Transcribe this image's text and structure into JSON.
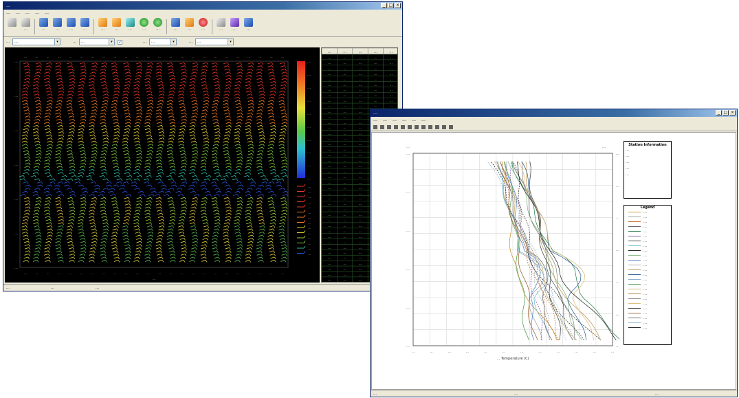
{
  "window1": {
    "title": "…",
    "min": "_",
    "max": "□",
    "close": "×",
    "menus": [
      "…",
      "…",
      "…",
      "…",
      "…"
    ],
    "tools": [
      {
        "label": "",
        "icon": "db-icon",
        "color": "grey"
      },
      {
        "label": "…",
        "icon": "wrench-icon",
        "color": "grey"
      },
      {
        "label": "…",
        "icon": "chart-icon",
        "color": "blue"
      },
      {
        "label": "…",
        "icon": "grid-icon",
        "color": "blue"
      },
      {
        "label": "…",
        "icon": "monitor-icon",
        "color": "blue"
      },
      {
        "label": "…",
        "icon": "pen-icon",
        "color": "blue"
      },
      {
        "label": "…",
        "icon": "tools-icon",
        "color": "orange"
      },
      {
        "label": "…",
        "icon": "folder-icon",
        "color": "orange"
      },
      {
        "label": "…",
        "icon": "print-icon",
        "color": "teal"
      },
      {
        "label": "…",
        "icon": "play-icon",
        "color": "green"
      },
      {
        "label": "…",
        "icon": "play-icon",
        "color": "green"
      },
      {
        "label": "…",
        "icon": "save-icon",
        "color": "blue"
      },
      {
        "label": "…",
        "icon": "gear-icon",
        "color": "orange"
      },
      {
        "label": "…",
        "icon": "stop-icon",
        "color": "red"
      },
      {
        "label": "…",
        "icon": "cursor-icon",
        "color": "grey"
      },
      {
        "label": "…",
        "icon": "magnet-icon",
        "color": "purple"
      },
      {
        "label": "…",
        "icon": "info-icon",
        "color": "blue"
      }
    ],
    "options": [
      {
        "label": "…",
        "value": "…"
      },
      {
        "label": "…",
        "value": "…"
      },
      {
        "label": "…",
        "value": "…"
      },
      {
        "label": "…",
        "value": "…"
      }
    ],
    "x_tick_label": "…",
    "status_left": "…",
    "status_mid": "…",
    "status_right": "…"
  },
  "window2": {
    "title": "…",
    "min": "_",
    "max": "□",
    "close": "×",
    "menus": [
      "…",
      "…",
      "…",
      "…",
      "…",
      "…"
    ],
    "plot_title_left": "…",
    "plot_title_right": "…",
    "xlabel": "… Temperature (C)",
    "info_title": "Station Information",
    "info_lines": [
      "…",
      "…",
      "…",
      "…",
      "…"
    ],
    "legend_title": "Legend",
    "legend": [
      {
        "name": "…",
        "color": "#c79a3a"
      },
      {
        "name": "…",
        "color": "#a0a0a0"
      },
      {
        "name": "…",
        "color": "#c66c2a"
      },
      {
        "name": "…",
        "color": "#6a6a6a"
      },
      {
        "name": "…",
        "color": "#3a8a5a"
      },
      {
        "name": "…",
        "color": "#8a5ab0"
      },
      {
        "name": "…",
        "color": "#4a4a4a"
      },
      {
        "name": "…",
        "color": "#7ac0d8"
      },
      {
        "name": "…",
        "color": "#2a2a2a"
      },
      {
        "name": "…",
        "color": "#88c088"
      },
      {
        "name": "…",
        "color": "#5a8aca"
      },
      {
        "name": "…",
        "color": "#b0b0b0"
      },
      {
        "name": "…",
        "color": "#c0a060"
      },
      {
        "name": "…",
        "color": "#3a6a9a"
      },
      {
        "name": "…",
        "color": "#8ab0d0"
      },
      {
        "name": "…",
        "color": "#5aa05a"
      },
      {
        "name": "…",
        "color": "#d0b070"
      },
      {
        "name": "…",
        "color": "#b08040"
      },
      {
        "name": "…",
        "color": "#909090"
      },
      {
        "name": "…",
        "color": "#e0c080"
      },
      {
        "name": "…",
        "color": "#404040"
      },
      {
        "name": "…",
        "color": "#9a6a3a"
      },
      {
        "name": "…",
        "color": "#707070"
      },
      {
        "name": "…",
        "color": "#a0c0e0"
      },
      {
        "name": "…",
        "color": "#303030"
      }
    ],
    "status_left": "…",
    "status_mid": "…",
    "status_right": "…"
  },
  "chart_data": [
    {
      "type": "heatmap",
      "title": "",
      "columns": 24,
      "colorbar_ticks": [
        "…",
        "…",
        "…",
        "…",
        "…",
        "…",
        "…",
        "…",
        "…",
        "…"
      ],
      "side_table": {
        "headers": [
          "…",
          "…",
          "…",
          "…",
          "…"
        ],
        "rows": 42
      }
    },
    {
      "type": "line",
      "xlabel": "… Temperature (C)",
      "y_left_ticks": [
        "…",
        "…",
        "…",
        "…",
        "…",
        "…"
      ],
      "y_right_ticks": [
        "…",
        "…",
        "…",
        "…",
        "…",
        "…",
        "…"
      ],
      "x_ticks": [
        "…",
        "…",
        "…",
        "…",
        "…",
        "…",
        "…",
        "…",
        "…",
        "…",
        "…",
        "…"
      ],
      "series_count": 25
    }
  ]
}
